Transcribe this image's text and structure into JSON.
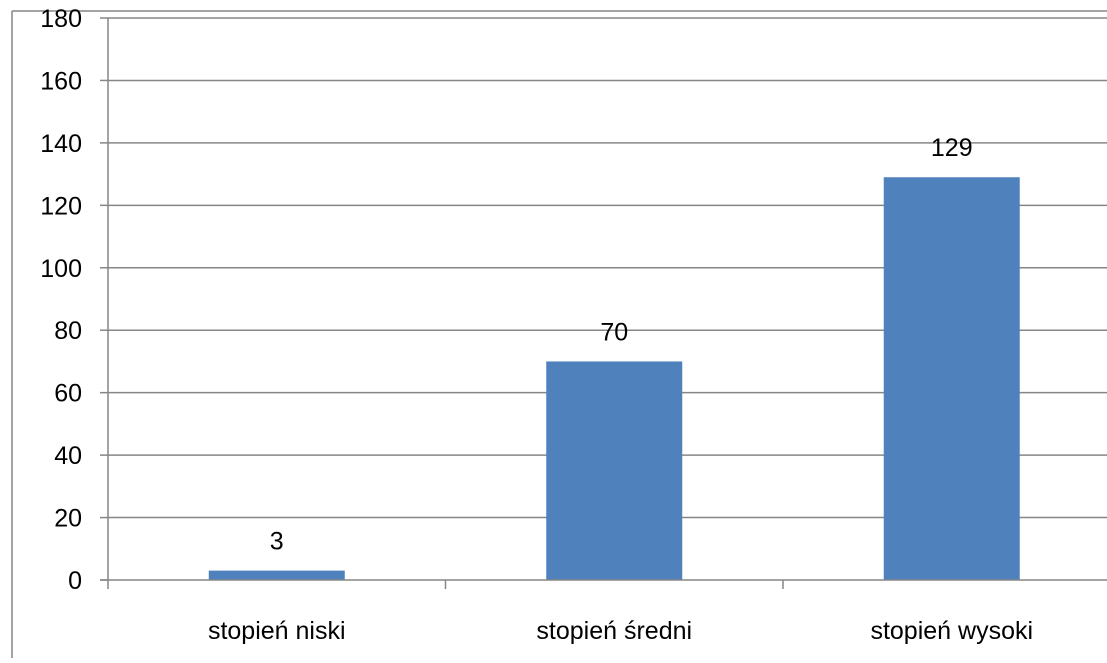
{
  "chart_data": {
    "type": "bar",
    "categories": [
      "stopień niski",
      "stopień średni",
      "stopień wysoki"
    ],
    "values": [
      3,
      70,
      129
    ],
    "data_labels": [
      "3",
      "70",
      "129"
    ],
    "yticks": [
      "0",
      "20",
      "40",
      "60",
      "80",
      "100",
      "120",
      "140",
      "160",
      "180"
    ],
    "ylim": [
      0,
      180
    ],
    "title": "",
    "xlabel": "",
    "ylabel": "",
    "grid": true,
    "legend": "none",
    "colors": {
      "bar": "#4f81bd",
      "grid": "#868686",
      "axis": "#868686",
      "frame": "#868686"
    }
  }
}
